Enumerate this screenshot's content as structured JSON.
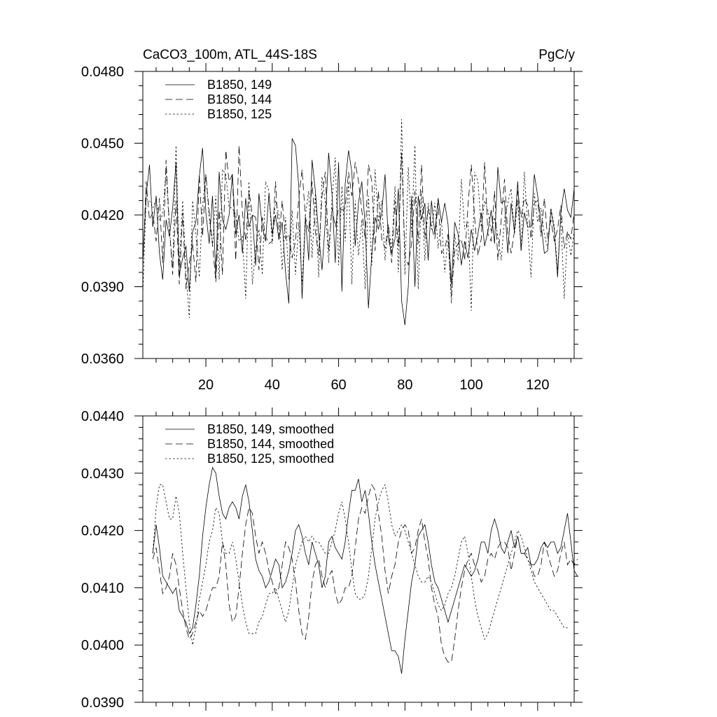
{
  "chart_data": [
    {
      "type": "line",
      "title_left": "CaCO3_100m, ATL_44S-18S",
      "title_right": "PgC/y",
      "xlim": [
        1,
        131
      ],
      "ylim": [
        0.036,
        0.048
      ],
      "yticks": [
        0.036,
        0.039,
        0.042,
        0.045,
        0.048
      ],
      "ytick_labels": [
        "0.0360",
        "0.0390",
        "0.0420",
        "0.0450",
        "0.0480"
      ],
      "xticks": [
        20,
        40,
        60,
        80,
        100,
        120
      ],
      "xtick_labels": [
        "20",
        "40",
        "60",
        "80",
        "100",
        "120"
      ],
      "legend_position": "top-left",
      "series": [
        {
          "name": "B1850, 149",
          "style": "solid",
          "x_start": 1,
          "values": [
            0.0401,
            0.0428,
            0.0441,
            0.0415,
            0.0428,
            0.0404,
            0.0393,
            0.0418,
            0.0411,
            0.0423,
            0.0442,
            0.0395,
            0.0402,
            0.0407,
            0.0388,
            0.0413,
            0.0417,
            0.0436,
            0.0448,
            0.0421,
            0.0408,
            0.0428,
            0.0395,
            0.0438,
            0.0418,
            0.0414,
            0.042,
            0.0437,
            0.0412,
            0.042,
            0.0404,
            0.0427,
            0.0415,
            0.042,
            0.0399,
            0.0429,
            0.0415,
            0.0409,
            0.0429,
            0.0412,
            0.042,
            0.041,
            0.0417,
            0.0396,
            0.0383,
            0.0452,
            0.0449,
            0.0432,
            0.0385,
            0.0419,
            0.0401,
            0.0443,
            0.043,
            0.0412,
            0.0397,
            0.0417,
            0.0446,
            0.0429,
            0.04,
            0.0442,
            0.0388,
            0.0433,
            0.0447,
            0.0438,
            0.0407,
            0.0425,
            0.0434,
            0.0416,
            0.0381,
            0.0404,
            0.0419,
            0.0414,
            0.0421,
            0.0437,
            0.041,
            0.0404,
            0.041,
            0.0431,
            0.0384,
            0.0374,
            0.039,
            0.0428,
            0.039,
            0.0428,
            0.0418,
            0.0425,
            0.0401,
            0.0426,
            0.0412,
            0.0427,
            0.0417,
            0.0425,
            0.0416,
            0.0391,
            0.0417,
            0.0412,
            0.0399,
            0.0409,
            0.0402,
            0.0414,
            0.0405,
            0.0412,
            0.0421,
            0.0407,
            0.0413,
            0.0422,
            0.0408,
            0.044,
            0.0425,
            0.0426,
            0.0404,
            0.0425,
            0.0413,
            0.0434,
            0.0405,
            0.0421,
            0.0415,
            0.0415,
            0.0437,
            0.0428,
            0.0417,
            0.0404,
            0.0405,
            0.0422,
            0.0414,
            0.0394,
            0.0421,
            0.0431,
            0.0422,
            0.0419,
            0.0431
          ]
        },
        {
          "name": "B1850, 144",
          "style": "dashed",
          "x_start": 1,
          "values": [
            0.0398,
            0.0434,
            0.0418,
            0.0421,
            0.0409,
            0.0427,
            0.04,
            0.0443,
            0.0415,
            0.0395,
            0.0426,
            0.0391,
            0.0421,
            0.0389,
            0.04,
            0.0408,
            0.0392,
            0.0437,
            0.0411,
            0.0437,
            0.0421,
            0.0408,
            0.0392,
            0.0422,
            0.0395,
            0.0447,
            0.0434,
            0.0437,
            0.0401,
            0.0449,
            0.0421,
            0.0409,
            0.043,
            0.042,
            0.0419,
            0.0397,
            0.0419,
            0.0411,
            0.0408,
            0.0409,
            0.0434,
            0.0409,
            0.0426,
            0.041,
            0.0412,
            0.0402,
            0.0409,
            0.0427,
            0.0439,
            0.0419,
            0.0413,
            0.0434,
            0.0413,
            0.0403,
            0.0428,
            0.0438,
            0.0405,
            0.0423,
            0.0415,
            0.0423,
            0.0422,
            0.0423,
            0.0438,
            0.0428,
            0.0442,
            0.0434,
            0.0422,
            0.041,
            0.0441,
            0.0434,
            0.0405,
            0.043,
            0.041,
            0.0406,
            0.0416,
            0.04,
            0.0426,
            0.0407,
            0.0446,
            0.0403,
            0.0399,
            0.0408,
            0.043,
            0.0408,
            0.0441,
            0.041,
            0.0423,
            0.0415,
            0.041,
            0.0425,
            0.0404,
            0.0406,
            0.0412,
            0.0386,
            0.0405,
            0.0408,
            0.041,
            0.0401,
            0.0424,
            0.0441,
            0.0419,
            0.0403,
            0.041,
            0.0442,
            0.0412,
            0.0409,
            0.043,
            0.0401,
            0.0418,
            0.0435,
            0.0412,
            0.0404,
            0.0413,
            0.043,
            0.0419,
            0.0427,
            0.0424,
            0.041,
            0.0425,
            0.0426,
            0.0411,
            0.0427,
            0.041,
            0.0418,
            0.0409,
            0.0414,
            0.0424,
            0.0406,
            0.0413,
            0.041,
            0.0421
          ]
        },
        {
          "name": "B1850, 125",
          "style": "dotted",
          "x_start": 1,
          "values": [
            0.0387,
            0.0427,
            0.0426,
            0.0423,
            0.0426,
            0.0418,
            0.042,
            0.0439,
            0.0414,
            0.0398,
            0.0449,
            0.0398,
            0.0426,
            0.0396,
            0.0377,
            0.0426,
            0.0412,
            0.0394,
            0.0424,
            0.0437,
            0.0419,
            0.0407,
            0.0428,
            0.0393,
            0.0439,
            0.0437,
            0.0423,
            0.0423,
            0.042,
            0.0409,
            0.0411,
            0.0385,
            0.0434,
            0.0391,
            0.0406,
            0.0414,
            0.0395,
            0.0434,
            0.043,
            0.0408,
            0.0426,
            0.042,
            0.0397,
            0.0419,
            0.0393,
            0.0422,
            0.0395,
            0.0417,
            0.0391,
            0.042,
            0.043,
            0.0402,
            0.0429,
            0.0394,
            0.0436,
            0.0425,
            0.04,
            0.0426,
            0.0444,
            0.0399,
            0.0432,
            0.0409,
            0.0434,
            0.0391,
            0.0426,
            0.0403,
            0.0418,
            0.0389,
            0.0428,
            0.0399,
            0.0439,
            0.0417,
            0.0426,
            0.0401,
            0.0416,
            0.0405,
            0.0432,
            0.0396,
            0.046,
            0.0395,
            0.044,
            0.0413,
            0.0449,
            0.0389,
            0.043,
            0.0401,
            0.0425,
            0.0414,
            0.0425,
            0.0406,
            0.0418,
            0.0396,
            0.0411,
            0.0383,
            0.0412,
            0.0401,
            0.0435,
            0.0414,
            0.0417,
            0.038,
            0.0438,
            0.0434,
            0.0415,
            0.0426,
            0.0422,
            0.0413,
            0.0419,
            0.0411,
            0.0401,
            0.0418,
            0.0425,
            0.0431,
            0.0412,
            0.0426,
            0.0405,
            0.0438,
            0.0414,
            0.0394,
            0.0429,
            0.0417,
            0.0423,
            0.0412,
            0.0406,
            0.0423,
            0.0415,
            0.0397,
            0.042,
            0.0385,
            0.0413,
            0.0403,
            0.0413
          ]
        }
      ]
    },
    {
      "type": "line",
      "xlim": [
        1,
        131
      ],
      "ylim": [
        0.039,
        0.044
      ],
      "yticks": [
        0.039,
        0.04,
        0.041,
        0.042,
        0.043,
        0.044
      ],
      "ytick_labels": [
        "0.0390",
        "0.0400",
        "0.0410",
        "0.0420",
        "0.0430",
        "0.0440"
      ],
      "xticks": [
        20,
        40,
        60,
        80,
        100,
        120
      ],
      "xtick_labels": [],
      "legend_position": "top-left",
      "series": [
        {
          "name": "B1850, 149, smoothed",
          "style": "solid",
          "x_start": 4,
          "values": [
            0.0416,
            0.0421,
            0.0417,
            0.0412,
            0.0411,
            0.041,
            0.0409,
            0.041,
            0.0406,
            0.0405,
            0.0404,
            0.0402,
            0.0403,
            0.0407,
            0.0412,
            0.0419,
            0.0424,
            0.0428,
            0.0431,
            0.043,
            0.0426,
            0.0423,
            0.0422,
            0.0424,
            0.0425,
            0.0424,
            0.0422,
            0.0426,
            0.0428,
            0.0425,
            0.042,
            0.0415,
            0.0413,
            0.0412,
            0.041,
            0.0411,
            0.0413,
            0.0415,
            0.0414,
            0.041,
            0.0411,
            0.0413,
            0.0416,
            0.042,
            0.0421,
            0.0419,
            0.0416,
            0.0414,
            0.0418,
            0.0416,
            0.0414,
            0.041,
            0.0412,
            0.0418,
            0.0419,
            0.0417,
            0.0416,
            0.0415,
            0.0418,
            0.0423,
            0.0427,
            0.0427,
            0.0429,
            0.0425,
            0.0427,
            0.0423,
            0.0418,
            0.0414,
            0.0411,
            0.0408,
            0.0405,
            0.0402,
            0.0399,
            0.0399,
            0.0398,
            0.0395,
            0.0401,
            0.0406,
            0.0411,
            0.0414,
            0.0419,
            0.042,
            0.0421,
            0.0418,
            0.0414,
            0.0411,
            0.041,
            0.0408,
            0.0406,
            0.0404,
            0.0406,
            0.0408,
            0.041,
            0.0412,
            0.0414,
            0.0413,
            0.0412,
            0.0413,
            0.0415,
            0.0418,
            0.0418,
            0.0416,
            0.042,
            0.0422,
            0.042,
            0.0417,
            0.0416,
            0.0418,
            0.042,
            0.0417,
            0.0419,
            0.0416,
            0.0416,
            0.0417,
            0.0414,
            0.0414,
            0.0415,
            0.0417,
            0.0418,
            0.0417,
            0.0418,
            0.0418,
            0.0416,
            0.0417,
            0.042,
            0.0423,
            0.0418,
            0.0413,
            0.0412
          ]
        },
        {
          "name": "B1850, 144, smoothed",
          "style": "dashed",
          "x_start": 4,
          "values": [
            0.0415,
            0.0417,
            0.0413,
            0.0409,
            0.041,
            0.0412,
            0.0416,
            0.0414,
            0.041,
            0.0406,
            0.0403,
            0.0401,
            0.0402,
            0.0404,
            0.0406,
            0.0405,
            0.0406,
            0.0408,
            0.041,
            0.041,
            0.0412,
            0.0418,
            0.0414,
            0.0407,
            0.0404,
            0.0405,
            0.041,
            0.0416,
            0.0421,
            0.0424,
            0.0423,
            0.0419,
            0.0416,
            0.0418,
            0.0416,
            0.0413,
            0.0411,
            0.0409,
            0.041,
            0.0414,
            0.0418,
            0.0417,
            0.0415,
            0.0411,
            0.0406,
            0.0402,
            0.0401,
            0.0405,
            0.0411,
            0.0414,
            0.0415,
            0.0412,
            0.041,
            0.0412,
            0.0413,
            0.0409,
            0.0407,
            0.0408,
            0.041,
            0.041,
            0.0412,
            0.0417,
            0.0422,
            0.0424,
            0.0423,
            0.0426,
            0.0428,
            0.0427,
            0.0423,
            0.0419,
            0.0413,
            0.0409,
            0.0412,
            0.0414,
            0.0418,
            0.042,
            0.0421,
            0.042,
            0.0416,
            0.0417,
            0.042,
            0.0422,
            0.0418,
            0.0415,
            0.041,
            0.0407,
            0.0405,
            0.04,
            0.0398,
            0.0397,
            0.0397,
            0.0401,
            0.0406,
            0.041,
            0.0413,
            0.0415,
            0.0416,
            0.0414,
            0.0413,
            0.0411,
            0.0412,
            0.0415,
            0.0416,
            0.0415,
            0.0417,
            0.0418,
            0.0418,
            0.0417,
            0.0413,
            0.0416,
            0.0419,
            0.0416,
            0.0416,
            0.0415,
            0.0414,
            0.0412,
            0.0412,
            0.0414,
            0.0418,
            0.0416,
            0.0414,
            0.0412,
            0.0413,
            0.0416,
            0.0418,
            0.0414,
            0.0415,
            0.0414,
            0.0415
          ]
        },
        {
          "name": "B1850, 125, smoothed",
          "style": "dotted",
          "x_start": 4,
          "values": [
            0.0416,
            0.0424,
            0.0428,
            0.0428,
            0.0425,
            0.0422,
            0.0422,
            0.0426,
            0.0423,
            0.0416,
            0.041,
            0.0404,
            0.04,
            0.0403,
            0.0408,
            0.0411,
            0.0414,
            0.0418,
            0.042,
            0.0424,
            0.0423,
            0.0418,
            0.0416,
            0.0416,
            0.0418,
            0.0415,
            0.0411,
            0.0407,
            0.0404,
            0.0402,
            0.0402,
            0.0402,
            0.0404,
            0.0405,
            0.0407,
            0.0409,
            0.0409,
            0.041,
            0.0408,
            0.0406,
            0.0404,
            0.0406,
            0.041,
            0.0414,
            0.0416,
            0.0418,
            0.0419,
            0.0418,
            0.0419,
            0.0418,
            0.0418,
            0.0417,
            0.0416,
            0.0416,
            0.0418,
            0.042,
            0.0423,
            0.0425,
            0.0422,
            0.0418,
            0.0413,
            0.0409,
            0.0408,
            0.0408,
            0.0409,
            0.0412,
            0.0417,
            0.0422,
            0.0425,
            0.0427,
            0.0428,
            0.0425,
            0.0421,
            0.0419,
            0.042,
            0.0421,
            0.042,
            0.0418,
            0.0416,
            0.0414,
            0.0412,
            0.0411,
            0.0411,
            0.0412,
            0.0411,
            0.0409,
            0.0407,
            0.0406,
            0.0407,
            0.0409,
            0.041,
            0.0412,
            0.0415,
            0.0418,
            0.0419,
            0.0416,
            0.0412,
            0.0408,
            0.0405,
            0.0403,
            0.0401,
            0.0402,
            0.0404,
            0.0406,
            0.0408,
            0.041,
            0.0412,
            0.0414,
            0.0416,
            0.0418,
            0.042,
            0.0419,
            0.0417,
            0.0415,
            0.0413,
            0.0411,
            0.041,
            0.0409,
            0.0408,
            0.0407,
            0.0406,
            0.0406,
            0.0405,
            0.0404,
            0.0403,
            0.0403
          ]
        }
      ]
    }
  ]
}
